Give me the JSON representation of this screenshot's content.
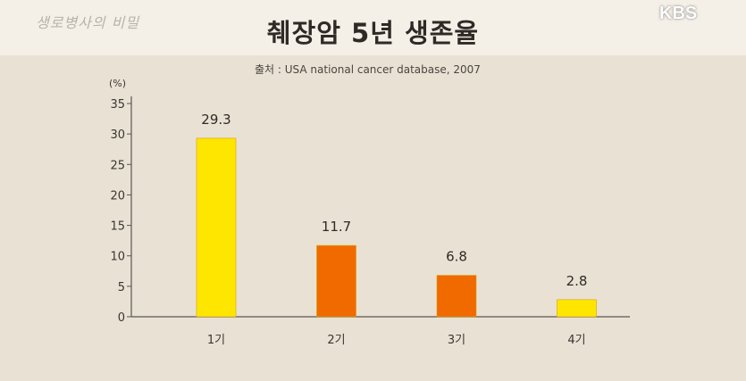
{
  "branding": {
    "show_logo": "생로병사의 비밀",
    "network_logo": "KBS"
  },
  "colors": {
    "background": "#e9e1d4",
    "header": "#f4f0e8",
    "bar_yellow": "#ffe600",
    "bar_orange": "#f06a00",
    "axis": "#5a5650"
  },
  "chart_data": {
    "type": "bar",
    "title": "췌장암 5년 생존율",
    "subtitle": "출처 : USA national cancer database, 2007",
    "ylabel": "(%)",
    "xlabel": "",
    "ylim": [
      0,
      35
    ],
    "yticks": [
      "0",
      "5",
      "10",
      "15",
      "20",
      "25",
      "30",
      "35"
    ],
    "grid": false,
    "legend": "none",
    "categories": [
      "1기",
      "2기",
      "3기",
      "4기"
    ],
    "values": [
      29.3,
      11.7,
      6.8,
      2.8
    ],
    "value_labels": [
      "29.3",
      "11.7",
      "6.8",
      "2.8"
    ],
    "bar_colors": [
      "#ffe600",
      "#f06a00",
      "#f06a00",
      "#ffe600"
    ]
  }
}
